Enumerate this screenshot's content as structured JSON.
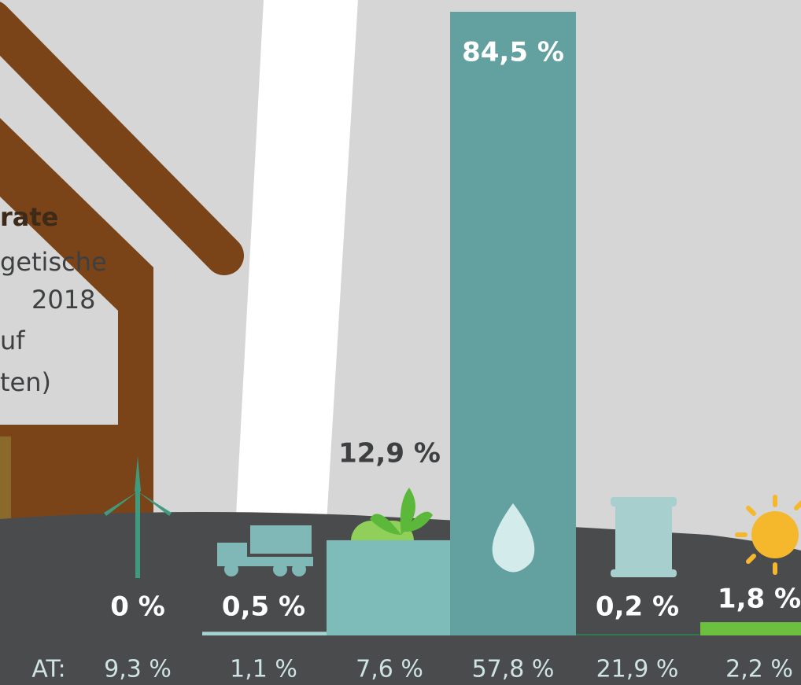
{
  "chart_data": {
    "type": "bar",
    "text_lines": [
      "rate",
      "getische",
      "2018",
      "uf",
      "ten)"
    ],
    "values": [
      0,
      0.5,
      12.9,
      84.5,
      0.2,
      1.8
    ],
    "value_labels": [
      "0 %",
      "0,5 %",
      "12,9 %",
      "84,5 %",
      "0,2 %",
      "1,8 %"
    ],
    "colors": [
      "#8ec9c6",
      "#a3d2cf",
      "#7dbcb9",
      "#62a19f",
      "#2f7d4e",
      "#6cbf3f"
    ],
    "at_label": "AT:",
    "at_values": [
      9.3,
      1.1,
      7.6,
      57.8,
      21.9,
      2.2
    ],
    "at_value_labels": [
      "9,3 %",
      "1,1 %",
      "7,6 %",
      "57,8 %",
      "21,9 %",
      "2,2 %"
    ]
  }
}
